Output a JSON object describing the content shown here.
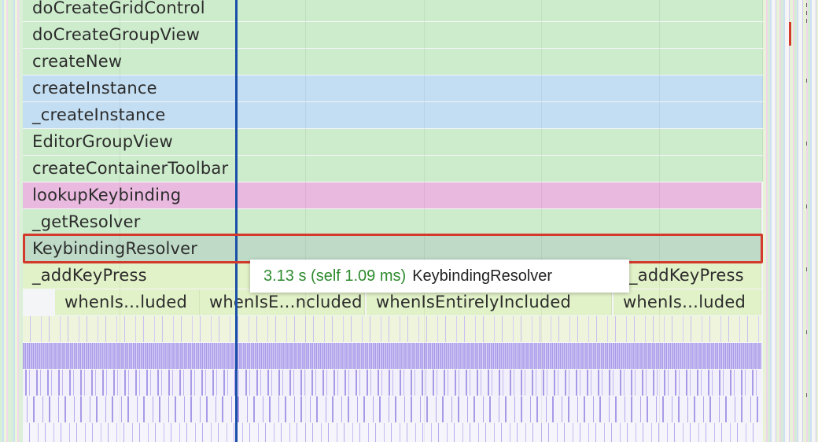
{
  "flame_rows": [
    {
      "frames": [
        {
          "label": "doCreateGridControl",
          "color": "green"
        }
      ]
    },
    {
      "frames": [
        {
          "label": "doCreateGroupView",
          "color": "green"
        }
      ]
    },
    {
      "frames": [
        {
          "label": "createNew",
          "color": "green"
        }
      ]
    },
    {
      "frames": [
        {
          "label": "createInstance",
          "color": "blue"
        }
      ]
    },
    {
      "frames": [
        {
          "label": "_createInstance",
          "color": "blue"
        }
      ]
    },
    {
      "frames": [
        {
          "label": "EditorGroupView",
          "color": "green"
        }
      ]
    },
    {
      "frames": [
        {
          "label": "createContainerToolbar",
          "color": "green"
        }
      ]
    },
    {
      "frames": [
        {
          "label": "lookupKeybinding",
          "color": "pink"
        }
      ]
    },
    {
      "frames": [
        {
          "label": "_getResolver",
          "color": "green"
        }
      ]
    },
    {
      "frames": [
        {
          "label": "KeybindingResolver",
          "color": "selgreen",
          "selected": true
        }
      ]
    },
    {
      "frames": [
        {
          "label": "_addKeyPress",
          "color": "lime"
        },
        {
          "label": "_addKeyPress",
          "color": "lime"
        }
      ]
    },
    {
      "frames": [
        {
          "label": "whenIs…luded",
          "color": "lime"
        },
        {
          "label": "whenIsE…ncluded",
          "color": "lime"
        },
        {
          "label": "whenIsEntirelyIncluded",
          "color": "lime"
        },
        {
          "label": "whenIs…luded",
          "color": "lime"
        }
      ]
    }
  ],
  "tooltip": {
    "time": "3.13 s (self 1.09 ms)",
    "function_name": "KeybindingResolver"
  },
  "colors": {
    "green": "#cdeccc",
    "blue": "#c3def3",
    "pink": "#eab9df",
    "selected": "#bfdbc7",
    "lime": "#e2f2c8",
    "selection_border": "#d33a2c",
    "cursor_line": "#1a4fa8",
    "tooltip_time": "#2e8b2e",
    "dense_frames": "#a99ae8"
  }
}
